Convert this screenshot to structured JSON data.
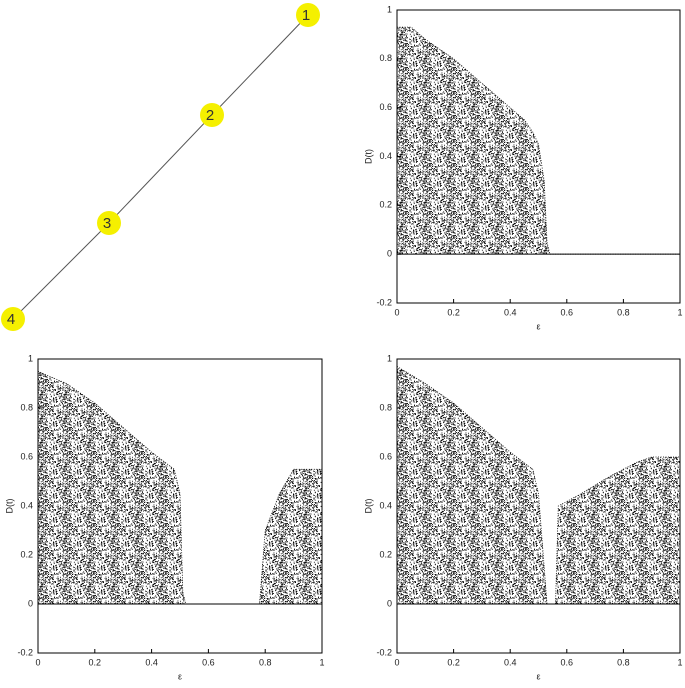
{
  "graph": {
    "nodes": [
      {
        "label": "1"
      },
      {
        "label": "2"
      },
      {
        "label": "3"
      },
      {
        "label": "4"
      }
    ]
  },
  "chart_data": [
    {
      "type": "area",
      "x_label": "ε",
      "y_label": "D(t)",
      "color": "#000000",
      "x": [
        0,
        0.05,
        0.1,
        0.2,
        0.3,
        0.4,
        0.45,
        0.48,
        0.5,
        0.52,
        0.53,
        0.54,
        1
      ],
      "values": [
        0.93,
        0.93,
        0.88,
        0.8,
        0.7,
        0.6,
        0.55,
        0.5,
        0.45,
        0.3,
        0.05,
        0,
        0
      ],
      "xlim": [
        0,
        1
      ],
      "ylim": [
        -0.2,
        1
      ],
      "xticks": [
        0,
        0.2,
        0.4,
        0.6,
        0.8,
        1
      ],
      "yticks": [
        -0.2,
        0,
        0.2,
        0.4,
        0.6,
        0.8,
        1
      ]
    },
    {
      "type": "area",
      "x_label": "ε",
      "y_label": "D(t)",
      "color": "#000000",
      "x": [
        0,
        0.1,
        0.2,
        0.3,
        0.4,
        0.48,
        0.5,
        0.51,
        0.52,
        0.78,
        0.8,
        0.85,
        0.9,
        0.95,
        1
      ],
      "values": [
        0.95,
        0.9,
        0.82,
        0.72,
        0.62,
        0.55,
        0.45,
        0.05,
        0,
        0,
        0.3,
        0.45,
        0.55,
        0.55,
        0.55
      ],
      "xlim": [
        0,
        1
      ],
      "ylim": [
        -0.2,
        1
      ],
      "xticks": [
        0,
        0.2,
        0.4,
        0.6,
        0.8,
        1
      ],
      "yticks": [
        -0.2,
        0,
        0.2,
        0.4,
        0.6,
        0.8,
        1
      ]
    },
    {
      "type": "area",
      "x_label": "ε",
      "y_label": "D(t)",
      "color": "#000000",
      "x": [
        0,
        0.1,
        0.2,
        0.3,
        0.4,
        0.48,
        0.5,
        0.52,
        0.53,
        0.56,
        0.57,
        0.65,
        0.75,
        0.85,
        0.9,
        1
      ],
      "values": [
        0.97,
        0.9,
        0.82,
        0.72,
        0.62,
        0.55,
        0.45,
        0.15,
        0,
        0,
        0.4,
        0.45,
        0.52,
        0.58,
        0.6,
        0.6
      ],
      "xlim": [
        0,
        1
      ],
      "ylim": [
        -0.2,
        1
      ],
      "xticks": [
        0,
        0.2,
        0.4,
        0.6,
        0.8,
        1
      ],
      "yticks": [
        -0.2,
        0,
        0.2,
        0.4,
        0.6,
        0.8,
        1
      ]
    }
  ]
}
